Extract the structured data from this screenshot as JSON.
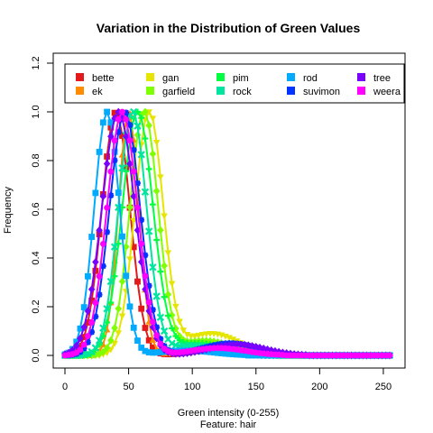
{
  "chart_data": {
    "type": "line",
    "title": "Variation in the Distribution of Green Values",
    "xlabel": "Green  intensity (0-255)",
    "xlabel_sub": "Feature: hair",
    "ylabel": "Frequency",
    "xlim": [
      0,
      255
    ],
    "ylim": [
      0,
      1.2
    ],
    "x_ticks": [
      0,
      50,
      100,
      150,
      200,
      250
    ],
    "y_ticks": [
      0.0,
      0.2,
      0.4,
      0.6,
      0.8,
      1.0,
      1.2
    ],
    "x_tick_labels": [
      "0",
      "50",
      "100",
      "150",
      "200",
      "250"
    ],
    "y_tick_labels": [
      "0.0",
      "0.2",
      "0.4",
      "0.6",
      "0.8",
      "1.0",
      "1.2"
    ],
    "grid": false,
    "legend_position": "top",
    "series": [
      {
        "name": "bette",
        "color": "#e31a1c",
        "marker": "square",
        "peak": 40,
        "width": 11,
        "tail_amp": 0.03,
        "tail_center": 125
      },
      {
        "name": "ek",
        "color": "#ff8c00",
        "marker": "triangle",
        "peak": 50,
        "width": 8,
        "tail_amp": 0.015,
        "tail_center": 110
      },
      {
        "name": "gan",
        "color": "#e5e500",
        "marker": "triangle-down",
        "peak": 66,
        "width": 11,
        "tail_amp": 0.09,
        "tail_center": 115
      },
      {
        "name": "garfield",
        "color": "#7fff00",
        "marker": "diamond",
        "peak": 62,
        "width": 11,
        "tail_amp": 0.06,
        "tail_center": 110
      },
      {
        "name": "pim",
        "color": "#00ff40",
        "marker": "plus",
        "peak": 57,
        "width": 12,
        "tail_amp": 0.05,
        "tail_center": 105
      },
      {
        "name": "rock",
        "color": "#00e5a0",
        "marker": "cross",
        "peak": 53,
        "width": 11,
        "tail_amp": 0.04,
        "tail_center": 100
      },
      {
        "name": "rod",
        "color": "#00aaff",
        "marker": "square",
        "peak": 33,
        "width": 10,
        "tail_amp": 0.02,
        "tail_center": 95
      },
      {
        "name": "suvimon",
        "color": "#0033ff",
        "marker": "star",
        "peak": 47,
        "width": 12,
        "tail_amp": 0.05,
        "tail_center": 130
      },
      {
        "name": "tree",
        "color": "#7a00ff",
        "marker": "diamond",
        "peak": 42,
        "width": 13,
        "tail_amp": 0.045,
        "tail_center": 135
      },
      {
        "name": "weera",
        "color": "#ff00ff",
        "marker": "circle",
        "peak": 45,
        "width": 12,
        "tail_amp": 0.03,
        "tail_center": 120
      }
    ]
  }
}
